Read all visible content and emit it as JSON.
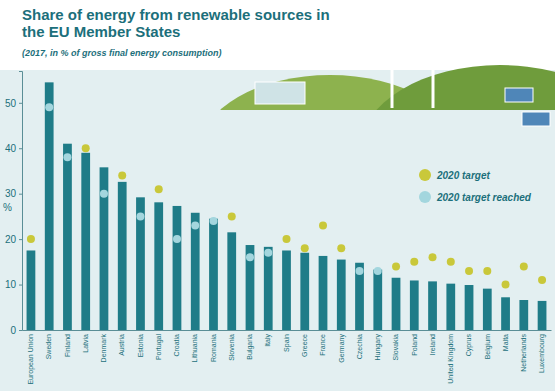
{
  "chart_data": {
    "type": "bar",
    "title": "Share of energy from renewable sources in the EU Member States",
    "subtitle": "(2017, in % of gross final energy consumption)",
    "y_label": "%",
    "categories": [
      "European Union",
      "Sweden",
      "Finland",
      "Latvia",
      "Denmark",
      "Austria",
      "Estonia",
      "Portugal",
      "Croatia",
      "Lithuania",
      "Romania",
      "Slovenia",
      "Bulgaria",
      "Italy",
      "Spain",
      "Greece",
      "France",
      "Germany",
      "Czechia",
      "Hungary",
      "Slovakia",
      "Poland",
      "Ireland",
      "United Kingdom",
      "Cyprus",
      "Belgium",
      "Malta",
      "Netherlands",
      "Luxembourg"
    ],
    "values": [
      17.5,
      54.5,
      41.0,
      39.0,
      35.8,
      32.6,
      29.2,
      28.1,
      27.3,
      25.8,
      24.5,
      21.5,
      18.7,
      18.3,
      17.5,
      17.0,
      16.3,
      15.5,
      14.8,
      13.3,
      11.5,
      10.9,
      10.7,
      10.2,
      9.9,
      9.1,
      7.2,
      6.6,
      6.4
    ],
    "color": "#1f7c88",
    "ylim": [
      0,
      57
    ],
    "yticks": [
      0,
      10,
      20,
      30,
      40,
      50
    ],
    "grid": false,
    "legend": "right",
    "series": [
      {
        "name": "2020 target",
        "type": "scatter",
        "marker": "circle",
        "color": "#c9c83a",
        "values": [
          20,
          null,
          null,
          40,
          null,
          34,
          null,
          31,
          null,
          null,
          null,
          25,
          null,
          null,
          20,
          18,
          23,
          18,
          null,
          null,
          14,
          15,
          16,
          15,
          13,
          13,
          10,
          14,
          11
        ]
      },
      {
        "name": "2020 target reached",
        "type": "scatter",
        "marker": "circle",
        "color": "#a3d6de",
        "values": [
          null,
          49,
          38,
          null,
          30,
          null,
          25,
          null,
          20,
          23,
          24,
          null,
          16,
          17,
          null,
          null,
          null,
          null,
          13,
          13,
          null,
          null,
          null,
          null,
          null,
          null,
          null,
          null,
          null
        ]
      }
    ]
  }
}
